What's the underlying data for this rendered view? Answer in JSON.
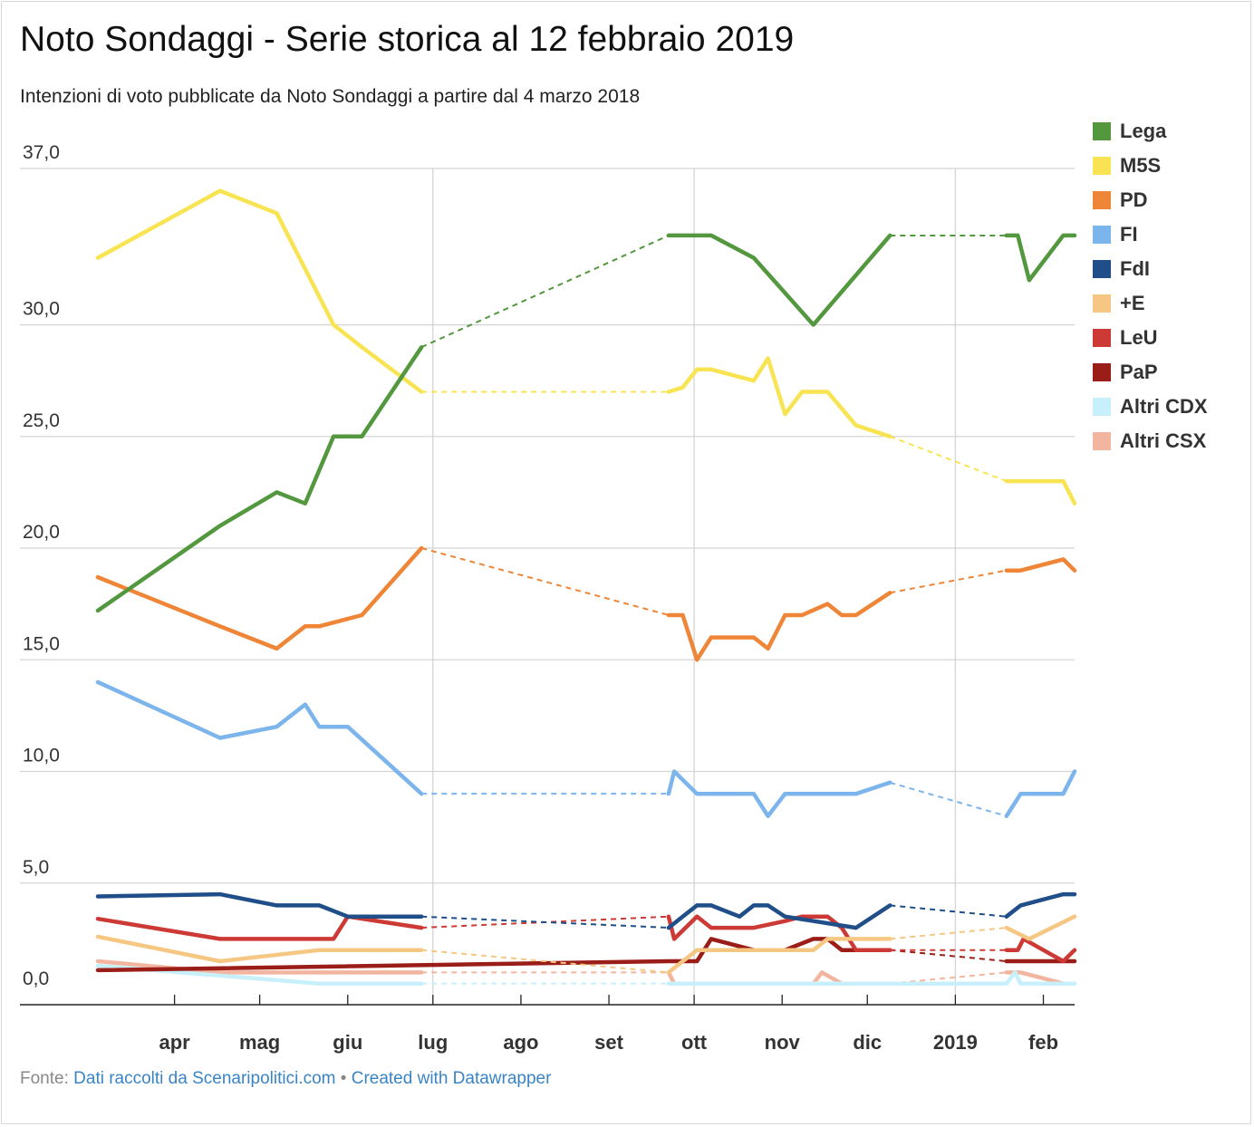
{
  "chart_data": {
    "type": "line",
    "title": "Noto Sondaggi - Serie storica al 12 febbraio 2019",
    "subtitle": "Intenzioni di voto pubblicate da Noto Sondaggi a partire dal 4 marzo 2018",
    "y_ticks": [
      "37,0",
      "30,0",
      "25,0",
      "20,0",
      "15,0",
      "10,0",
      "5,0",
      "0,0"
    ],
    "y_tick_values": [
      37,
      30,
      25,
      20,
      15,
      10,
      5,
      0
    ],
    "x_ticks": [
      {
        "label": "apr",
        "date": "2018-04-01",
        "grid": false
      },
      {
        "label": "mag",
        "date": "2018-05-01",
        "grid": false
      },
      {
        "label": "giu",
        "date": "2018-06-01",
        "grid": false
      },
      {
        "label": "lug",
        "date": "2018-07-01",
        "grid": true
      },
      {
        "label": "ago",
        "date": "2018-08-01",
        "grid": false
      },
      {
        "label": "set",
        "date": "2018-09-01",
        "grid": false
      },
      {
        "label": "ott",
        "date": "2018-10-01",
        "grid": true
      },
      {
        "label": "nov",
        "date": "2018-11-01",
        "grid": false
      },
      {
        "label": "dic",
        "date": "2018-12-01",
        "grid": false
      },
      {
        "label": "2019",
        "date": "2019-01-01",
        "grid": true
      },
      {
        "label": "feb",
        "date": "2019-02-01",
        "grid": false
      }
    ],
    "x_range": [
      "2018-03-05",
      "2019-02-12"
    ],
    "ylim": [
      0,
      37
    ],
    "grid": true,
    "legend_position": "right",
    "gap_segments_dashed": true,
    "series": [
      {
        "name": "Lega",
        "color": "#53973e",
        "points": [
          [
            "2018-03-05",
            17.2
          ],
          [
            "2018-04-17",
            21
          ],
          [
            "2018-05-07",
            22.5
          ],
          [
            "2018-05-17",
            22
          ],
          [
            "2018-05-27",
            25
          ],
          [
            "2018-06-06",
            25
          ],
          [
            "2018-06-27",
            29
          ],
          [
            "2018-09-22",
            34
          ],
          [
            "2018-10-07",
            34
          ],
          [
            "2018-10-22",
            33
          ],
          [
            "2018-11-12",
            30
          ],
          [
            "2018-12-09",
            34
          ],
          [
            "2019-01-19",
            34
          ],
          [
            "2019-01-23",
            34
          ],
          [
            "2019-01-27",
            32
          ],
          [
            "2019-02-08",
            34
          ],
          [
            "2019-02-12",
            34
          ]
        ]
      },
      {
        "name": "M5S",
        "color": "#f8e453",
        "points": [
          [
            "2018-03-05",
            33
          ],
          [
            "2018-04-17",
            36
          ],
          [
            "2018-05-07",
            35
          ],
          [
            "2018-05-17",
            32.5
          ],
          [
            "2018-05-27",
            30
          ],
          [
            "2018-06-06",
            29
          ],
          [
            "2018-06-27",
            27
          ],
          [
            "2018-09-22",
            27
          ],
          [
            "2018-09-27",
            27.2
          ],
          [
            "2018-10-02",
            28
          ],
          [
            "2018-10-07",
            28
          ],
          [
            "2018-10-22",
            27.5
          ],
          [
            "2018-10-27",
            28.5
          ],
          [
            "2018-11-02",
            26
          ],
          [
            "2018-11-08",
            27
          ],
          [
            "2018-11-17",
            27
          ],
          [
            "2018-11-27",
            25.5
          ],
          [
            "2018-12-09",
            25
          ],
          [
            "2019-01-19",
            23
          ],
          [
            "2019-02-08",
            23
          ],
          [
            "2019-02-12",
            22
          ]
        ]
      },
      {
        "name": "PD",
        "color": "#ef8536",
        "points": [
          [
            "2018-03-05",
            18.7
          ],
          [
            "2018-04-17",
            16.5
          ],
          [
            "2018-05-07",
            15.5
          ],
          [
            "2018-05-17",
            16.5
          ],
          [
            "2018-05-22",
            16.5
          ],
          [
            "2018-06-06",
            17
          ],
          [
            "2018-06-27",
            20
          ],
          [
            "2018-09-22",
            17
          ],
          [
            "2018-09-27",
            17
          ],
          [
            "2018-10-02",
            15
          ],
          [
            "2018-10-07",
            16
          ],
          [
            "2018-10-22",
            16
          ],
          [
            "2018-10-27",
            15.5
          ],
          [
            "2018-11-02",
            17
          ],
          [
            "2018-11-08",
            17
          ],
          [
            "2018-11-17",
            17.5
          ],
          [
            "2018-11-22",
            17
          ],
          [
            "2018-11-27",
            17
          ],
          [
            "2018-12-09",
            18
          ],
          [
            "2019-01-19",
            19
          ],
          [
            "2019-01-24",
            19
          ],
          [
            "2019-02-08",
            19.5
          ],
          [
            "2019-02-12",
            19
          ]
        ]
      },
      {
        "name": "FI",
        "color": "#7cb4ec",
        "points": [
          [
            "2018-03-05",
            14
          ],
          [
            "2018-04-17",
            11.5
          ],
          [
            "2018-05-07",
            12
          ],
          [
            "2018-05-17",
            13
          ],
          [
            "2018-05-22",
            12
          ],
          [
            "2018-06-01",
            12
          ],
          [
            "2018-06-27",
            9
          ],
          [
            "2018-09-22",
            9
          ],
          [
            "2018-09-24",
            10
          ],
          [
            "2018-10-02",
            9
          ],
          [
            "2018-10-22",
            9
          ],
          [
            "2018-10-27",
            8
          ],
          [
            "2018-11-02",
            9
          ],
          [
            "2018-11-27",
            9
          ],
          [
            "2018-12-09",
            9.5
          ],
          [
            "2019-01-19",
            8
          ],
          [
            "2019-01-24",
            9
          ],
          [
            "2019-02-08",
            9
          ],
          [
            "2019-02-12",
            10
          ]
        ]
      },
      {
        "name": "FdI",
        "color": "#1f4e89",
        "points": [
          [
            "2018-03-05",
            4.4
          ],
          [
            "2018-04-17",
            4.5
          ],
          [
            "2018-05-07",
            4
          ],
          [
            "2018-05-22",
            4
          ],
          [
            "2018-06-01",
            3.5
          ],
          [
            "2018-06-27",
            3.5
          ],
          [
            "2018-09-22",
            3
          ],
          [
            "2018-10-02",
            4
          ],
          [
            "2018-10-07",
            4
          ],
          [
            "2018-10-17",
            3.5
          ],
          [
            "2018-10-22",
            4
          ],
          [
            "2018-10-27",
            4
          ],
          [
            "2018-11-02",
            3.5
          ],
          [
            "2018-11-27",
            3
          ],
          [
            "2018-12-09",
            4
          ],
          [
            "2019-01-19",
            3.5
          ],
          [
            "2019-01-24",
            4
          ],
          [
            "2019-02-08",
            4.5
          ],
          [
            "2019-02-12",
            4.5
          ]
        ]
      },
      {
        "name": "+E",
        "color": "#f6c783",
        "points": [
          [
            "2018-03-05",
            2.6
          ],
          [
            "2018-04-17",
            1.5
          ],
          [
            "2018-05-22",
            2
          ],
          [
            "2018-06-01",
            2
          ],
          [
            "2018-06-27",
            2
          ],
          [
            "2018-09-22",
            1
          ],
          [
            "2018-10-02",
            2
          ],
          [
            "2018-11-12",
            2
          ],
          [
            "2018-11-17",
            2.5
          ],
          [
            "2018-12-09",
            2.5
          ],
          [
            "2019-01-19",
            3
          ],
          [
            "2019-01-27",
            2.5
          ],
          [
            "2019-02-12",
            3.5
          ]
        ]
      },
      {
        "name": "LeU",
        "color": "#cd3a36",
        "points": [
          [
            "2018-03-05",
            3.4
          ],
          [
            "2018-04-17",
            2.5
          ],
          [
            "2018-05-27",
            2.5
          ],
          [
            "2018-06-01",
            3.5
          ],
          [
            "2018-06-27",
            3
          ],
          [
            "2018-09-22",
            3.5
          ],
          [
            "2018-09-24",
            2.5
          ],
          [
            "2018-10-02",
            3.5
          ],
          [
            "2018-10-07",
            3
          ],
          [
            "2018-10-22",
            3
          ],
          [
            "2018-11-02",
            3.3
          ],
          [
            "2018-11-08",
            3.5
          ],
          [
            "2018-11-17",
            3.5
          ],
          [
            "2018-11-22",
            3
          ],
          [
            "2018-11-27",
            2
          ],
          [
            "2018-12-09",
            2
          ],
          [
            "2019-01-19",
            2
          ],
          [
            "2019-01-23",
            2
          ],
          [
            "2019-01-25",
            2.5
          ],
          [
            "2019-02-08",
            1.5
          ],
          [
            "2019-02-12",
            2
          ]
        ]
      },
      {
        "name": "PaP",
        "color": "#9b1d18",
        "points": [
          [
            "2018-03-05",
            1.1
          ],
          [
            "2018-09-22",
            1.5
          ],
          [
            "2018-10-02",
            1.5
          ],
          [
            "2018-10-07",
            2.5
          ],
          [
            "2018-10-22",
            2
          ],
          [
            "2018-11-02",
            2
          ],
          [
            "2018-11-12",
            2.5
          ],
          [
            "2018-11-17",
            2.5
          ],
          [
            "2018-11-22",
            2
          ],
          [
            "2018-12-09",
            2
          ],
          [
            "2019-01-19",
            1.5
          ],
          [
            "2019-02-12",
            1.5
          ]
        ]
      },
      {
        "name": "Altri CDX",
        "color": "#c8f0fa",
        "points": [
          [
            "2018-03-05",
            1.3
          ],
          [
            "2018-05-22",
            0.5
          ],
          [
            "2018-06-27",
            0.5
          ],
          [
            "2018-09-22",
            0.5
          ],
          [
            "2018-11-27",
            0.5
          ],
          [
            "2019-01-19",
            0.5
          ],
          [
            "2019-01-22",
            1
          ],
          [
            "2019-01-24",
            0.5
          ],
          [
            "2019-02-12",
            0.5
          ]
        ]
      },
      {
        "name": "Altri CSX",
        "color": "#f2b59f",
        "points": [
          [
            "2018-03-05",
            1.5
          ],
          [
            "2018-04-17",
            1
          ],
          [
            "2018-05-22",
            1
          ],
          [
            "2018-06-27",
            1
          ],
          [
            "2018-09-22",
            1
          ],
          [
            "2018-09-24",
            0.5
          ],
          [
            "2018-11-02",
            0.5
          ],
          [
            "2018-11-12",
            0.5
          ],
          [
            "2018-11-15",
            1
          ],
          [
            "2018-11-22",
            0.5
          ],
          [
            "2018-12-09",
            0.5
          ],
          [
            "2019-01-19",
            1
          ],
          [
            "2019-01-24",
            1
          ],
          [
            "2019-02-08",
            0.5
          ],
          [
            "2019-02-12",
            0.5
          ]
        ]
      }
    ],
    "gaps": [
      [
        "2018-06-27",
        "2018-09-22"
      ],
      [
        "2018-12-09",
        "2019-01-19"
      ]
    ]
  },
  "footer": {
    "prefix": "Fonte: ",
    "source_link": "Dati raccolti da Scenaripolitici.com",
    "separator": " • ",
    "created_link": "Created with Datawrapper"
  }
}
